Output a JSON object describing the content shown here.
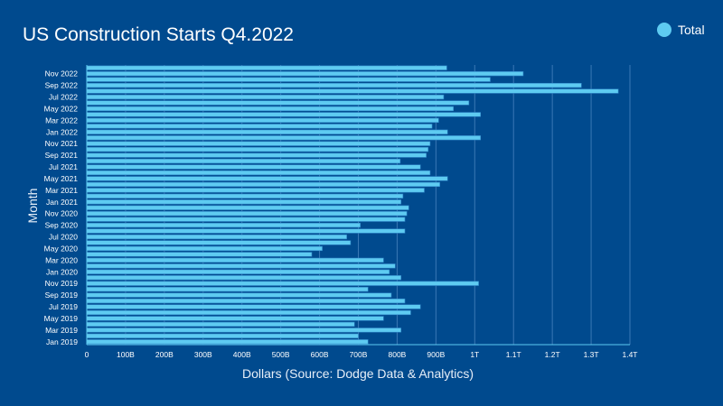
{
  "chart_data": {
    "type": "bar",
    "orientation": "horizontal",
    "title": "US Construction Starts Q4.2022",
    "xlabel": "Dollars (Source: Dodge Data & Analytics)",
    "ylabel": "Month",
    "xlim": [
      0,
      1400
    ],
    "xunit": "billions of dollars",
    "x_ticks": [
      0,
      100,
      200,
      300,
      400,
      500,
      600,
      700,
      800,
      900,
      1000,
      1100,
      1200,
      1300,
      1400
    ],
    "x_tick_labels": [
      "0",
      "100B",
      "200B",
      "300B",
      "400B",
      "500B",
      "600B",
      "700B",
      "800B",
      "900B",
      "1T",
      "1.1T",
      "1.2T",
      "1.3T",
      "1.4T"
    ],
    "y_tick_labels": [
      "Jan 2019",
      "Mar 2019",
      "May 2019",
      "Jul 2019",
      "Sep 2019",
      "Nov 2019",
      "Jan 2020",
      "Mar 2020",
      "May 2020",
      "Jul 2020",
      "Sep 2020",
      "Nov 2020",
      "Jan 2021",
      "Mar 2021",
      "May 2021",
      "Jul 2021",
      "Sep 2021",
      "Nov 2021",
      "Jan 2022",
      "Mar 2022",
      "May 2022",
      "Jul 2022",
      "Sep 2022",
      "Nov 2022"
    ],
    "categories": [
      "Jan 2019",
      "Feb 2019",
      "Mar 2019",
      "Apr 2019",
      "May 2019",
      "Jun 2019",
      "Jul 2019",
      "Aug 2019",
      "Sep 2019",
      "Oct 2019",
      "Nov 2019",
      "Dec 2019",
      "Jan 2020",
      "Feb 2020",
      "Mar 2020",
      "Apr 2020",
      "May 2020",
      "Jun 2020",
      "Jul 2020",
      "Aug 2020",
      "Sep 2020",
      "Oct 2020",
      "Nov 2020",
      "Dec 2020",
      "Jan 2021",
      "Feb 2021",
      "Mar 2021",
      "Apr 2021",
      "May 2021",
      "Jun 2021",
      "Jul 2021",
      "Aug 2021",
      "Sep 2021",
      "Oct 2021",
      "Nov 2021",
      "Dec 2021",
      "Jan 2022",
      "Feb 2022",
      "Mar 2022",
      "Apr 2022",
      "May 2022",
      "Jun 2022",
      "Jul 2022",
      "Aug 2022",
      "Sep 2022",
      "Oct 2022",
      "Nov 2022",
      "Dec 2022"
    ],
    "series": [
      {
        "name": "Total",
        "values": [
          725,
          700,
          810,
          690,
          765,
          835,
          860,
          820,
          785,
          725,
          1010,
          810,
          780,
          795,
          765,
          580,
          607,
          680,
          670,
          820,
          705,
          820,
          825,
          830,
          810,
          815,
          870,
          910,
          930,
          885,
          860,
          808,
          875,
          880,
          885,
          1015,
          930,
          890,
          907,
          1015,
          945,
          985,
          920,
          1370,
          1275,
          1040,
          1125,
          928
        ]
      }
    ],
    "legend": {
      "position": "top-right"
    },
    "grid": {
      "x": true,
      "y": false
    },
    "colors": {
      "background": "#004a8e",
      "bar": "#5ecbf1",
      "bar_outline": "#2f86c8",
      "grid": "#3a78b5",
      "axis": "#5ecbf1",
      "text": "#ffffff"
    }
  }
}
